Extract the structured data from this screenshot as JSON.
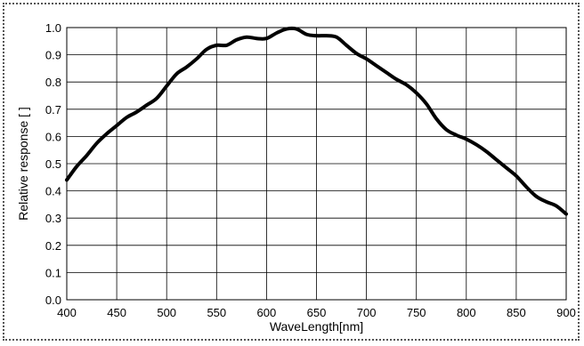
{
  "chart_data": {
    "type": "line",
    "title": "",
    "xlabel": "WaveLength[nm]",
    "ylabel": "Relative response [ ]",
    "xlim": [
      400,
      900
    ],
    "ylim": [
      0.0,
      1.0
    ],
    "x_ticks": [
      "400",
      "450",
      "500",
      "550",
      "600",
      "650",
      "700",
      "750",
      "800",
      "850",
      "900"
    ],
    "y_ticks": [
      "0.0",
      "0.1",
      "0.2",
      "0.3",
      "0.4",
      "0.5",
      "0.6",
      "0.7",
      "0.8",
      "0.9",
      "1.0"
    ],
    "grid": true,
    "legend": "none",
    "line_color": "#000000",
    "series": [
      {
        "x": [
          400,
          410,
          420,
          430,
          440,
          450,
          460,
          470,
          480,
          490,
          500,
          510,
          520,
          530,
          540,
          550,
          560,
          570,
          580,
          590,
          600,
          610,
          620,
          630,
          640,
          650,
          660,
          670,
          680,
          690,
          700,
          710,
          720,
          730,
          740,
          750,
          760,
          770,
          780,
          790,
          800,
          810,
          820,
          830,
          840,
          850,
          860,
          870,
          880,
          890,
          900
        ],
        "y": [
          0.44,
          0.49,
          0.53,
          0.575,
          0.61,
          0.64,
          0.67,
          0.69,
          0.715,
          0.74,
          0.785,
          0.83,
          0.855,
          0.885,
          0.92,
          0.935,
          0.935,
          0.955,
          0.965,
          0.96,
          0.96,
          0.98,
          0.995,
          0.995,
          0.975,
          0.97,
          0.97,
          0.965,
          0.935,
          0.905,
          0.885,
          0.86,
          0.835,
          0.81,
          0.79,
          0.76,
          0.72,
          0.665,
          0.625,
          0.605,
          0.59,
          0.57,
          0.545,
          0.515,
          0.485,
          0.455,
          0.415,
          0.38,
          0.36,
          0.345,
          0.315
        ]
      }
    ]
  }
}
